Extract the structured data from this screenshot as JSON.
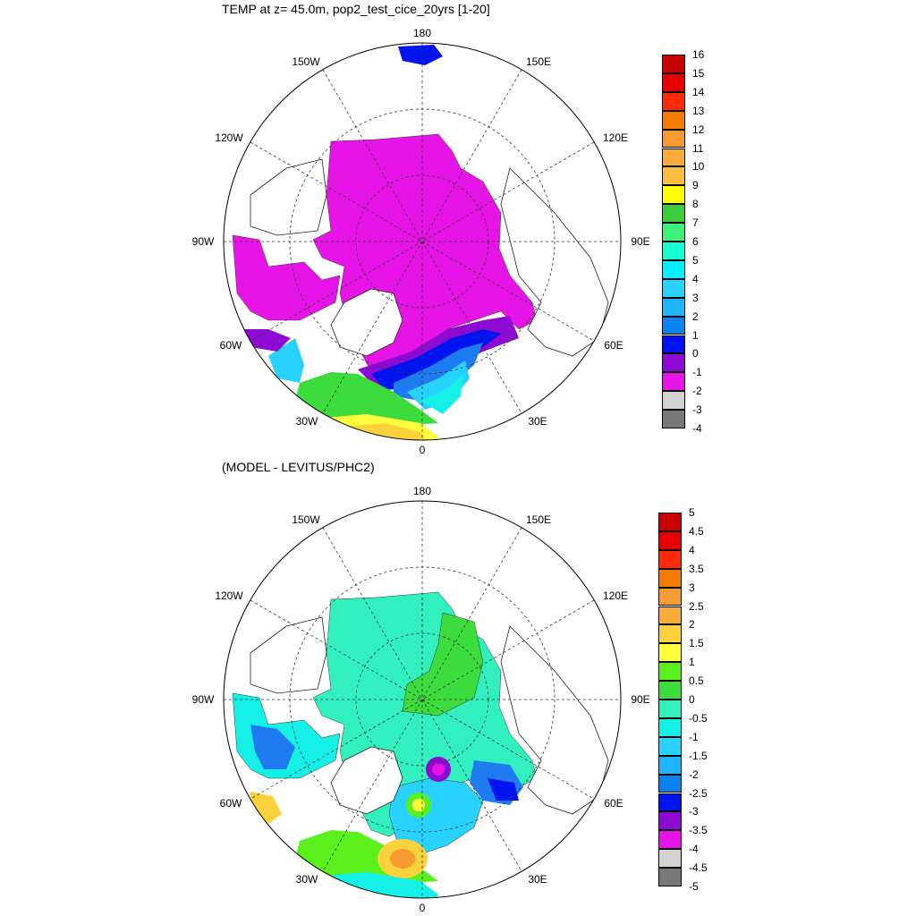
{
  "panels": [
    {
      "title": "TEMP at z=  45.0m, pop2_test_cice_20yrs [1-20]",
      "lon_labels": {
        "l180": "180",
        "l150W": "150W",
        "l150E": "150E",
        "l120W": "120W",
        "l120E": "120E",
        "l90W": "90W",
        "l90E": "90E",
        "l60W": "60W",
        "l60E": "60E",
        "l30W": "30W",
        "l30E": "30E",
        "l0": "0"
      },
      "colorbar": {
        "levels": [
          "16",
          "15",
          "14",
          "13",
          "12",
          "11",
          "10",
          "9",
          "8",
          "7",
          "6",
          "5",
          "4",
          "3",
          "2",
          "1",
          "0",
          "-1",
          "-2",
          "-3",
          "-4"
        ],
        "colors": [
          "#c80000",
          "#e60000",
          "#ff2a0a",
          "#f57a00",
          "#f79a30",
          "#f9ac3a",
          "#fbbe40",
          "#ffff00",
          "#3ccc3c",
          "#3cf07a",
          "#14ffd2",
          "#00f0ff",
          "#28d2ff",
          "#1eb4ff",
          "#0a82f0",
          "#0014f0",
          "#8c0ad2",
          "#e614e6",
          "#d2d2d2",
          "#787878"
        ]
      }
    },
    {
      "title": "(MODEL - LEVITUS/PHC2)",
      "lon_labels": {
        "l180": "180",
        "l150W": "150W",
        "l150E": "150E",
        "l120W": "120W",
        "l120E": "120E",
        "l90W": "90W",
        "l90E": "90E",
        "l60W": "60W",
        "l60E": "60E",
        "l30W": "30W",
        "l30E": "30E",
        "l0": "0"
      },
      "colorbar": {
        "levels": [
          "5",
          "4.5",
          "4",
          "3.5",
          "3",
          "2.5",
          "2",
          "1.5",
          "1",
          "0.5",
          "0",
          "-0.5",
          "-1",
          "-1.5",
          "-2",
          "-2.5",
          "-3",
          "-3.5",
          "-4",
          "-4.5",
          "-5"
        ],
        "colors": [
          "#c80000",
          "#e60000",
          "#ff2a0a",
          "#f57a00",
          "#f79a30",
          "#f9ac3a",
          "#fbd23c",
          "#ffff3c",
          "#5af01e",
          "#3cdc3c",
          "#32f0be",
          "#14f0e6",
          "#28d2ff",
          "#1eb4ff",
          "#0a82f0",
          "#0014f0",
          "#8c0ad2",
          "#e614e6",
          "#d2d2d2",
          "#787878"
        ]
      }
    }
  ],
  "legend": {
    "temp_colors": {
      "magenta": "#e614e6",
      "purple": "#8c0ad2",
      "blue": "#0014f0",
      "mid_blue": "#1e7cf0",
      "sky": "#28d2ff",
      "cyan": "#14f0e6",
      "green": "#3cdc3c",
      "yellow": "#ffff3c",
      "gold": "#fbd23c"
    }
  }
}
